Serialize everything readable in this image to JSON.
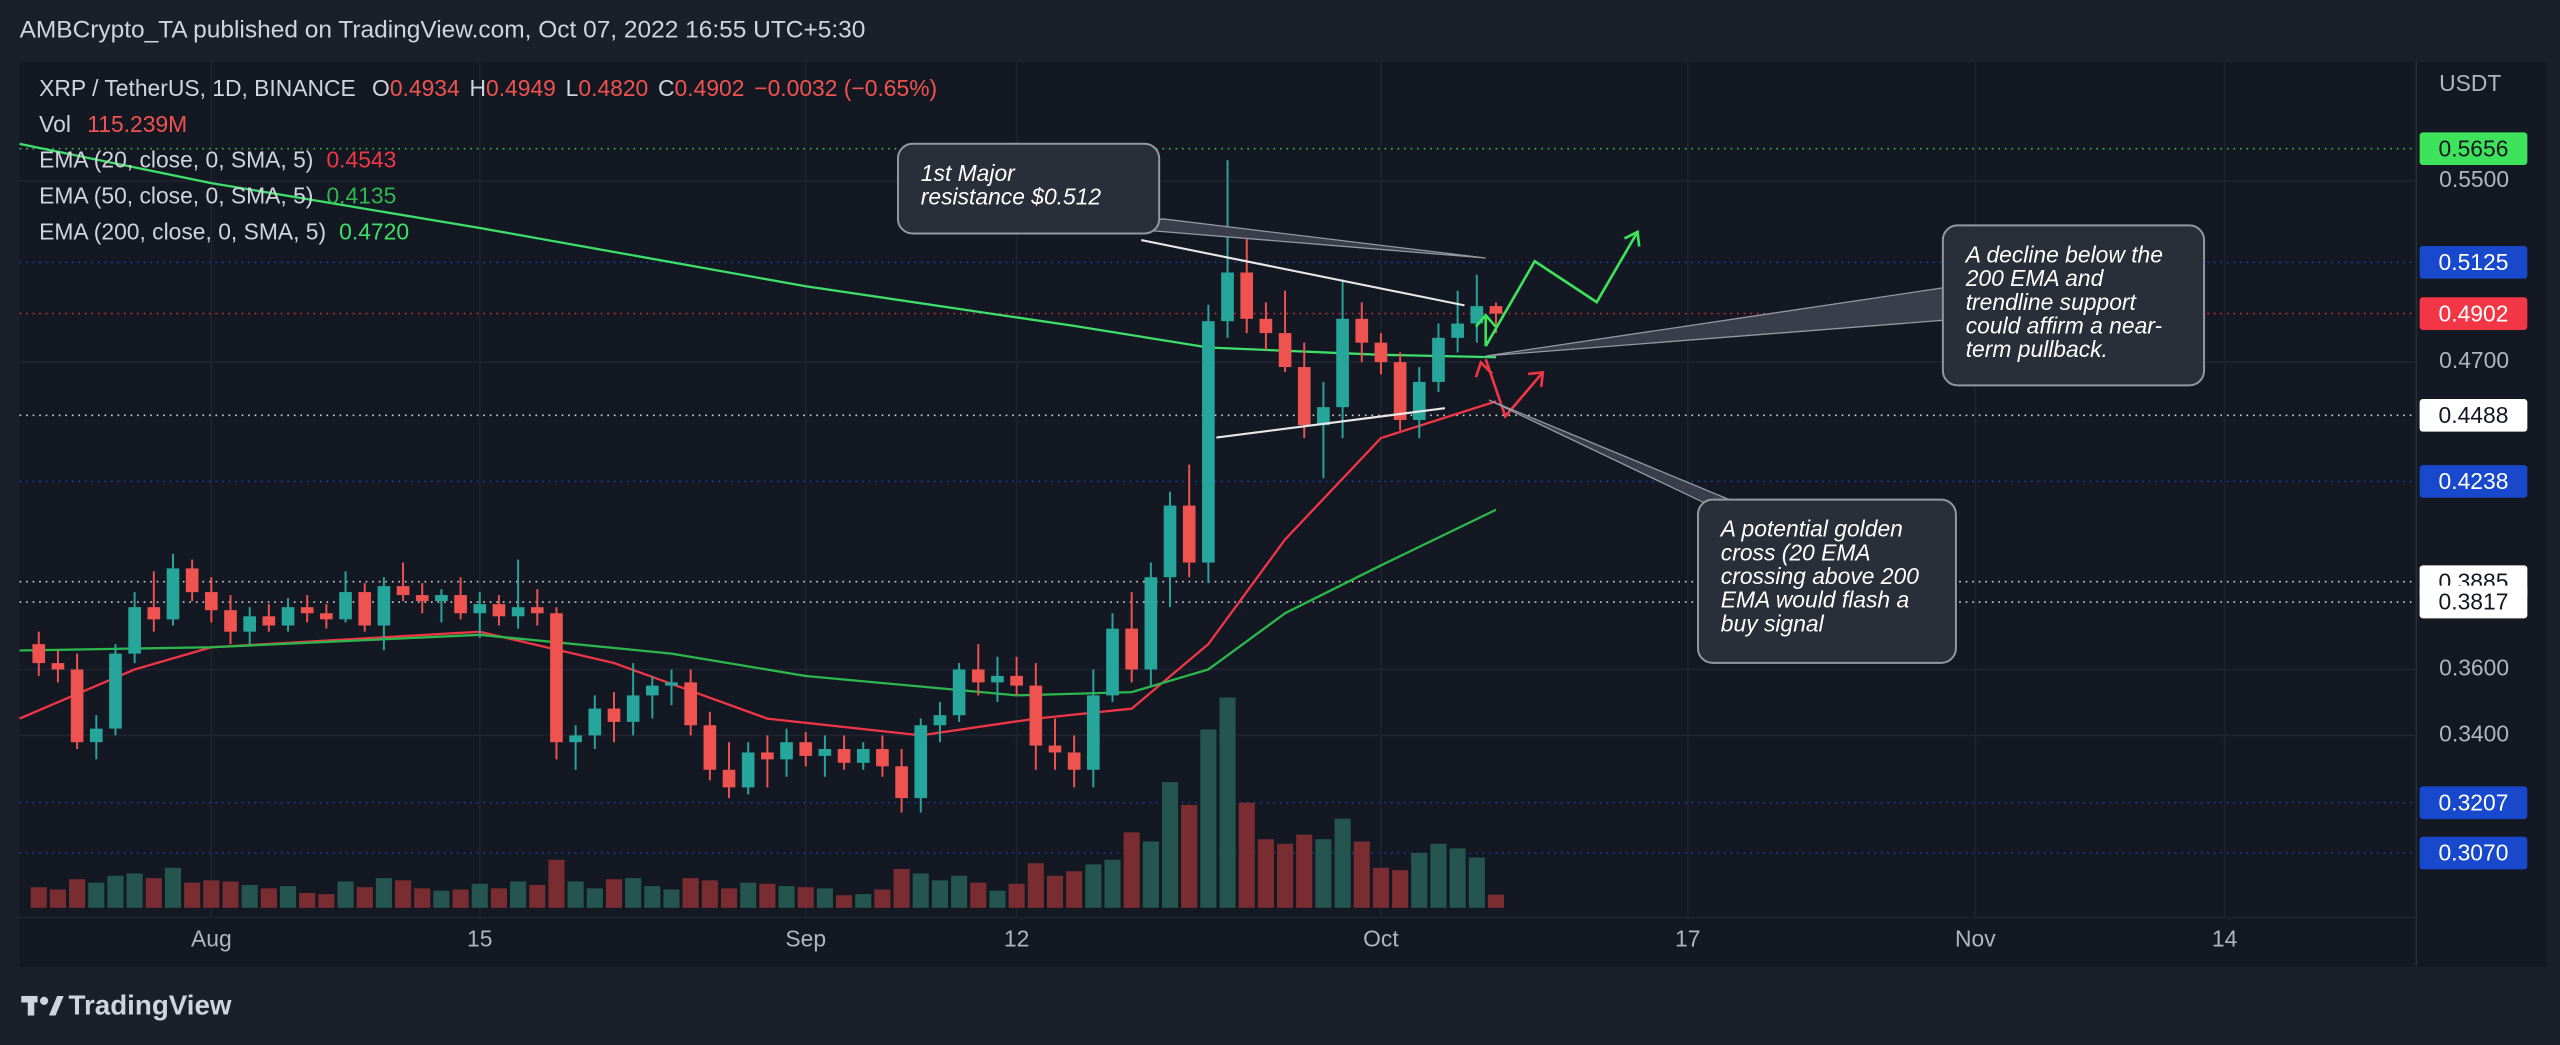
{
  "header": "AMBCrypto_TA published on TradingView.com, Oct 07, 2022 16:55 UTC+5:30",
  "chart_data": {
    "type": "candlestick",
    "symbol_label": "XRP / TetherUS, 1D, BINANCE",
    "ohlc_prefixes": [
      "O",
      "H",
      "L",
      "C"
    ],
    "ohlc_labels": [
      "0.4934",
      "0.4949",
      "0.4820",
      "0.4902"
    ],
    "change_label": "−0.0032 (−0.65%)",
    "volume_name": "Vol",
    "volume_value_label": "115.239M",
    "x": [
      "07-23",
      "07-24",
      "07-25",
      "07-26",
      "07-27",
      "07-28",
      "07-29",
      "07-30",
      "07-31",
      "08-01",
      "08-02",
      "08-03",
      "08-04",
      "08-05",
      "08-06",
      "08-07",
      "08-08",
      "08-09",
      "08-10",
      "08-11",
      "08-12",
      "08-13",
      "08-14",
      "08-15",
      "08-16",
      "08-17",
      "08-18",
      "08-19",
      "08-20",
      "08-21",
      "08-22",
      "08-23",
      "08-24",
      "08-25",
      "08-26",
      "08-27",
      "08-28",
      "08-29",
      "08-30",
      "08-31",
      "09-01",
      "09-02",
      "09-03",
      "09-04",
      "09-05",
      "09-06",
      "09-07",
      "09-08",
      "09-09",
      "09-10",
      "09-11",
      "09-12",
      "09-13",
      "09-14",
      "09-15",
      "09-16",
      "09-17",
      "09-18",
      "09-19",
      "09-20",
      "09-21",
      "09-22",
      "09-23",
      "09-24",
      "09-25",
      "09-26",
      "09-27",
      "09-28",
      "09-29",
      "09-30",
      "10-01",
      "10-02",
      "10-03",
      "10-04",
      "10-05",
      "10-06",
      "10-07"
    ],
    "open": [
      0.368,
      0.362,
      0.36,
      0.338,
      0.342,
      0.365,
      0.38,
      0.376,
      0.393,
      0.385,
      0.379,
      0.372,
      0.377,
      0.374,
      0.38,
      0.378,
      0.376,
      0.385,
      0.374,
      0.387,
      0.384,
      0.382,
      0.384,
      0.378,
      0.381,
      0.377,
      0.38,
      0.378,
      0.338,
      0.34,
      0.348,
      0.344,
      0.352,
      0.355,
      0.356,
      0.343,
      0.33,
      0.325,
      0.335,
      0.333,
      0.338,
      0.334,
      0.336,
      0.332,
      0.336,
      0.331,
      0.322,
      0.343,
      0.346,
      0.36,
      0.356,
      0.358,
      0.355,
      0.337,
      0.335,
      0.33,
      0.352,
      0.373,
      0.36,
      0.39,
      0.415,
      0.395,
      0.487,
      0.508,
      0.488,
      0.482,
      0.468,
      0.445,
      0.452,
      0.488,
      0.478,
      0.47,
      0.447,
      0.462,
      0.48,
      0.486,
      0.4934
    ],
    "high": [
      0.372,
      0.366,
      0.365,
      0.346,
      0.368,
      0.385,
      0.392,
      0.398,
      0.396,
      0.39,
      0.384,
      0.38,
      0.381,
      0.383,
      0.384,
      0.381,
      0.392,
      0.388,
      0.39,
      0.395,
      0.388,
      0.386,
      0.39,
      0.385,
      0.384,
      0.396,
      0.386,
      0.38,
      0.343,
      0.352,
      0.353,
      0.362,
      0.358,
      0.36,
      0.36,
      0.347,
      0.338,
      0.338,
      0.34,
      0.342,
      0.341,
      0.34,
      0.34,
      0.338,
      0.34,
      0.336,
      0.345,
      0.35,
      0.362,
      0.368,
      0.364,
      0.364,
      0.362,
      0.345,
      0.34,
      0.36,
      0.378,
      0.385,
      0.395,
      0.42,
      0.43,
      0.494,
      0.56,
      0.525,
      0.495,
      0.5,
      0.478,
      0.462,
      0.505,
      0.495,
      0.482,
      0.474,
      0.468,
      0.486,
      0.5,
      0.507,
      0.4949
    ],
    "low": [
      0.358,
      0.356,
      0.336,
      0.333,
      0.34,
      0.362,
      0.372,
      0.374,
      0.382,
      0.375,
      0.368,
      0.368,
      0.372,
      0.372,
      0.375,
      0.373,
      0.375,
      0.372,
      0.366,
      0.382,
      0.378,
      0.375,
      0.376,
      0.37,
      0.374,
      0.373,
      0.374,
      0.333,
      0.33,
      0.336,
      0.338,
      0.34,
      0.345,
      0.349,
      0.34,
      0.327,
      0.322,
      0.323,
      0.325,
      0.328,
      0.331,
      0.328,
      0.33,
      0.33,
      0.328,
      0.318,
      0.318,
      0.338,
      0.344,
      0.352,
      0.35,
      0.352,
      0.33,
      0.33,
      0.325,
      0.325,
      0.35,
      0.356,
      0.355,
      0.38,
      0.39,
      0.388,
      0.48,
      0.482,
      0.475,
      0.466,
      0.44,
      0.425,
      0.44,
      0.47,
      0.465,
      0.443,
      0.44,
      0.458,
      0.474,
      0.478,
      0.482
    ],
    "close": [
      0.362,
      0.36,
      0.338,
      0.342,
      0.365,
      0.38,
      0.376,
      0.393,
      0.385,
      0.379,
      0.372,
      0.377,
      0.374,
      0.38,
      0.378,
      0.376,
      0.385,
      0.374,
      0.387,
      0.384,
      0.382,
      0.384,
      0.378,
      0.381,
      0.377,
      0.38,
      0.378,
      0.338,
      0.34,
      0.348,
      0.344,
      0.352,
      0.355,
      0.356,
      0.343,
      0.33,
      0.325,
      0.335,
      0.333,
      0.338,
      0.334,
      0.336,
      0.332,
      0.336,
      0.331,
      0.322,
      0.343,
      0.346,
      0.36,
      0.356,
      0.358,
      0.355,
      0.337,
      0.335,
      0.33,
      0.352,
      0.373,
      0.36,
      0.39,
      0.415,
      0.395,
      0.487,
      0.508,
      0.488,
      0.482,
      0.468,
      0.445,
      0.452,
      0.488,
      0.478,
      0.47,
      0.447,
      0.462,
      0.48,
      0.486,
      0.4934,
      0.4902
    ],
    "volume": [
      180,
      160,
      250,
      220,
      280,
      300,
      260,
      350,
      220,
      240,
      230,
      200,
      170,
      190,
      130,
      120,
      230,
      180,
      260,
      240,
      170,
      150,
      160,
      210,
      170,
      230,
      200,
      420,
      230,
      170,
      250,
      260,
      190,
      160,
      260,
      240,
      170,
      220,
      210,
      190,
      180,
      170,
      110,
      120,
      160,
      340,
      300,
      240,
      280,
      220,
      150,
      210,
      390,
      280,
      320,
      380,
      420,
      660,
      580,
      1100,
      900,
      1560,
      1840,
      920,
      600,
      560,
      640,
      600,
      780,
      580,
      350,
      330,
      480,
      560,
      520,
      440,
      115.239
    ],
    "vlim": [
      0,
      2000
    ],
    "series": [
      {
        "name": "EMA (20, close, 0, SMA, 5)",
        "color": "#f23645",
        "last_label": "0.4543",
        "x": [
          "07-22",
          "07-28",
          "08-01",
          "08-15",
          "08-22",
          "08-30",
          "09-07",
          "09-13",
          "09-18",
          "09-22",
          "09-26",
          "10-01",
          "10-07"
        ],
        "values": [
          0.345,
          0.36,
          0.367,
          0.372,
          0.362,
          0.345,
          0.34,
          0.345,
          0.348,
          0.368,
          0.403,
          0.44,
          0.4543
        ]
      },
      {
        "name": "EMA (50, close, 0, SMA, 5)",
        "color": "#2db84d",
        "last_label": "0.4135",
        "x": [
          "07-22",
          "08-01",
          "08-15",
          "08-25",
          "09-01",
          "09-12",
          "09-18",
          "09-22",
          "09-26",
          "10-01",
          "10-07"
        ],
        "values": [
          0.366,
          0.367,
          0.371,
          0.365,
          0.358,
          0.352,
          0.353,
          0.36,
          0.378,
          0.394,
          0.4135
        ]
      },
      {
        "name": "EMA (200, close, 0, SMA, 5)",
        "color": "#3ee06a",
        "last_label": "0.4720",
        "x": [
          "07-22",
          "08-01",
          "08-15",
          "09-01",
          "09-15",
          "09-22",
          "10-01",
          "10-07"
        ],
        "values": [
          0.568,
          0.549,
          0.528,
          0.502,
          0.485,
          0.476,
          0.473,
          0.472
        ]
      }
    ],
    "up_color": "#26a69a",
    "down_color": "#ef5350",
    "vol_up_color": "#24564f",
    "vol_down_color": "#7a2d31",
    "log_scale": true,
    "grid": true,
    "ylim": [
      0.279,
      0.608
    ],
    "yticks": [
      {
        "value": 0.55,
        "label": "0.5500"
      },
      {
        "value": 0.47,
        "label": "0.4700"
      },
      {
        "value": 0.36,
        "label": "0.3600"
      },
      {
        "value": 0.34,
        "label": "0.3400"
      }
    ],
    "xlim": [
      "07-22",
      "11-24"
    ],
    "xticks": [
      {
        "value": "08-01",
        "label": "Aug"
      },
      {
        "value": "08-15",
        "label": "15"
      },
      {
        "value": "09-01",
        "label": "Sep"
      },
      {
        "value": "09-12",
        "label": "12"
      },
      {
        "value": "10-01",
        "label": "Oct"
      },
      {
        "value": "10-17",
        "label": "17"
      },
      {
        "value": "11-01",
        "label": "Nov"
      },
      {
        "value": "11-14",
        "label": "14"
      }
    ],
    "axis_unit": "USDT",
    "price_lines": [
      {
        "value": 0.5656,
        "label": "0.5656",
        "color": "#3de35a",
        "text_color": "#131722"
      },
      {
        "value": 0.5125,
        "label": "0.5125",
        "color": "#1848cc",
        "text_color": "#ffffff"
      },
      {
        "value": 0.4902,
        "label": "0.4902",
        "color": "#f23645",
        "text_color": "#ffffff"
      },
      {
        "value": 0.4488,
        "label": "0.4488",
        "color": "#ffffff",
        "text_color": "#131722"
      },
      {
        "value": 0.4238,
        "label": "0.4238",
        "color": "#1848cc",
        "text_color": "#ffffff"
      },
      {
        "value": 0.3885,
        "label": "0.3885",
        "color": "#ffffff",
        "text_color": "#131722"
      },
      {
        "value": 0.3817,
        "label": "0.3817",
        "color": "#ffffff",
        "text_color": "#131722"
      },
      {
        "value": 0.3207,
        "label": "0.3207",
        "color": "#1848cc",
        "text_color": "#ffffff"
      },
      {
        "value": 0.307,
        "label": "0.3070",
        "color": "#1848cc",
        "text_color": "#ffffff"
      }
    ],
    "annotations": [
      {
        "lines": [
          "1st Major",
          "resistance $0.512"
        ]
      },
      {
        "lines": [
          "A decline below the",
          "200 EMA and",
          "trendline support",
          "could affirm a near-",
          "term pullback."
        ]
      },
      {
        "lines": [
          "A potential golden",
          "cross (20 EMA",
          "crossing above 200",
          "EMA would flash a",
          "buy signal"
        ]
      }
    ]
  },
  "brand": "TradingView"
}
